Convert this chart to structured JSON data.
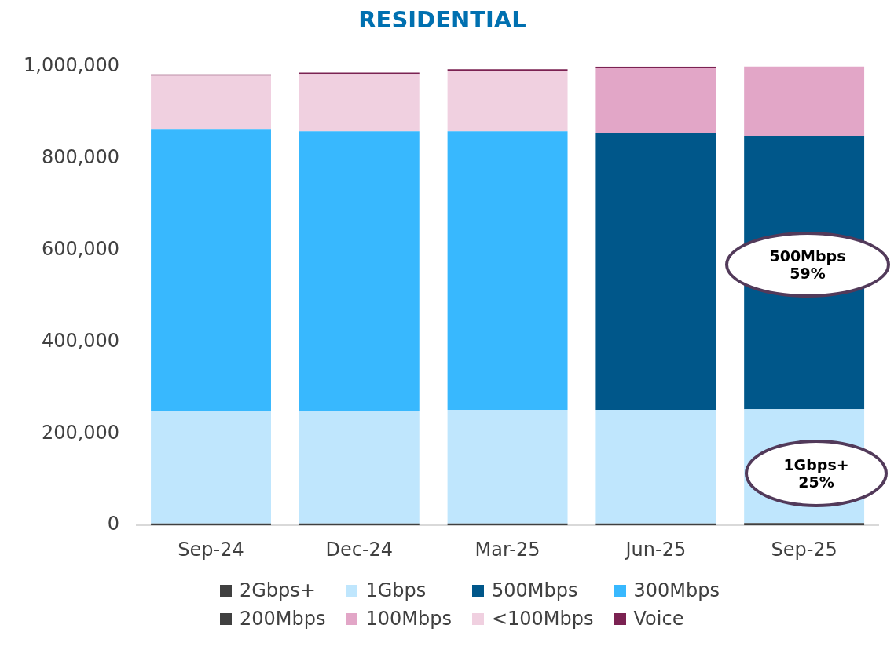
{
  "chart_data": {
    "type": "bar",
    "title": "RESIDENTIAL",
    "stacked": true,
    "legend": "bottom",
    "grid": false,
    "categories": [
      "Sep-24",
      "Dec-24",
      "Mar-25",
      "Jun-25",
      "Sep-25"
    ],
    "ylim": [
      0,
      1000000
    ],
    "yticks": [
      0,
      {
        "value": 200000,
        "label": "200,000"
      },
      {
        "value": 400000,
        "label": "400,000"
      },
      {
        "value": 600000,
        "label": "600,000"
      },
      {
        "value": 800000,
        "label": "800,000"
      },
      {
        "value": 1000000,
        "label": "1,000,000"
      }
    ],
    "series": [
      {
        "name": "2Gbps+",
        "color": "#404040",
        "values": [
          4000,
          4000,
          4000,
          4000,
          5000
        ]
      },
      {
        "name": "1Gbps",
        "color": "#bfe6fd",
        "values": [
          245000,
          246000,
          248000,
          248000,
          248000
        ]
      },
      {
        "name": "500Mbps",
        "color": "#00578a",
        "values": [
          null,
          null,
          null,
          603000,
          596000
        ]
      },
      {
        "name": "300Mbps",
        "color": "#38b8fe",
        "values": [
          615000,
          609000,
          607000,
          null,
          null
        ]
      },
      {
        "name": "200Mbps",
        "color": "#404040",
        "values": [
          null,
          null,
          null,
          null,
          null
        ]
      },
      {
        "name": "100Mbps",
        "color": "#e2a6c7",
        "values": [
          null,
          null,
          null,
          142000,
          154000
        ]
      },
      {
        "name": "<100Mbps",
        "color": "#f0d0e0",
        "values": [
          116000,
          125000,
          132000,
          null,
          null
        ]
      },
      {
        "name": "Voice",
        "color": "#7b2252",
        "values": [
          3000,
          3000,
          3000,
          3000,
          null
        ]
      }
    ],
    "annotations": [
      "500Mbps\n59%",
      "1Gbps+\n25%"
    ]
  }
}
